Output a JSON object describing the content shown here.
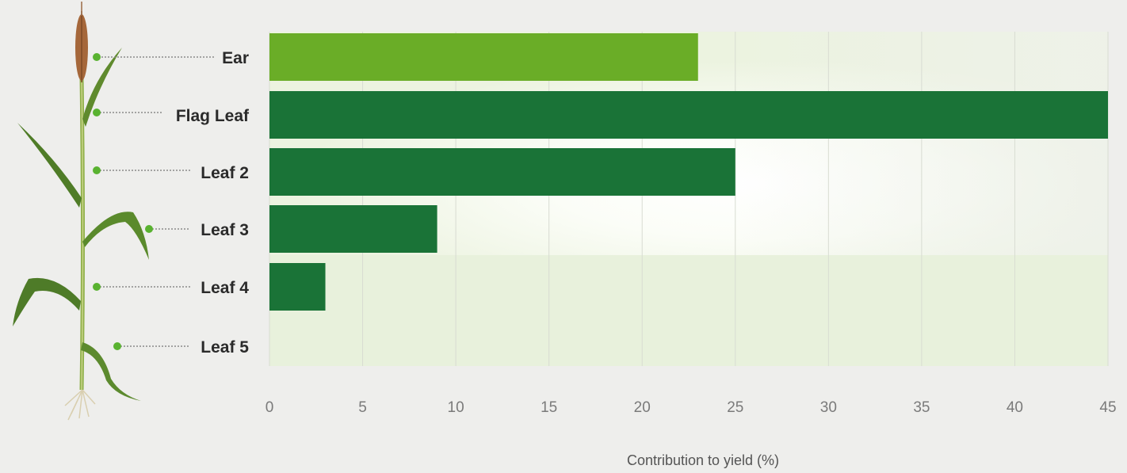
{
  "chart_data": {
    "type": "bar",
    "orientation": "horizontal",
    "categories": [
      "Ear",
      "Flag Leaf",
      "Leaf 2",
      "Leaf 3",
      "Leaf 4",
      "Leaf 5"
    ],
    "values": [
      23,
      45,
      25,
      9,
      3,
      0
    ],
    "bar_colors": [
      "#6aad27",
      "#1a7337",
      "#1a7337",
      "#1a7337",
      "#1a7337",
      "#1a7337"
    ],
    "xlabel": "Contribution to yield (%)",
    "xlim": [
      0,
      45
    ],
    "xticks": [
      0,
      5,
      10,
      15,
      20,
      25,
      30,
      35,
      40,
      45
    ],
    "grid": true,
    "legend": "none",
    "illustration": "wheat-plant-icon"
  }
}
